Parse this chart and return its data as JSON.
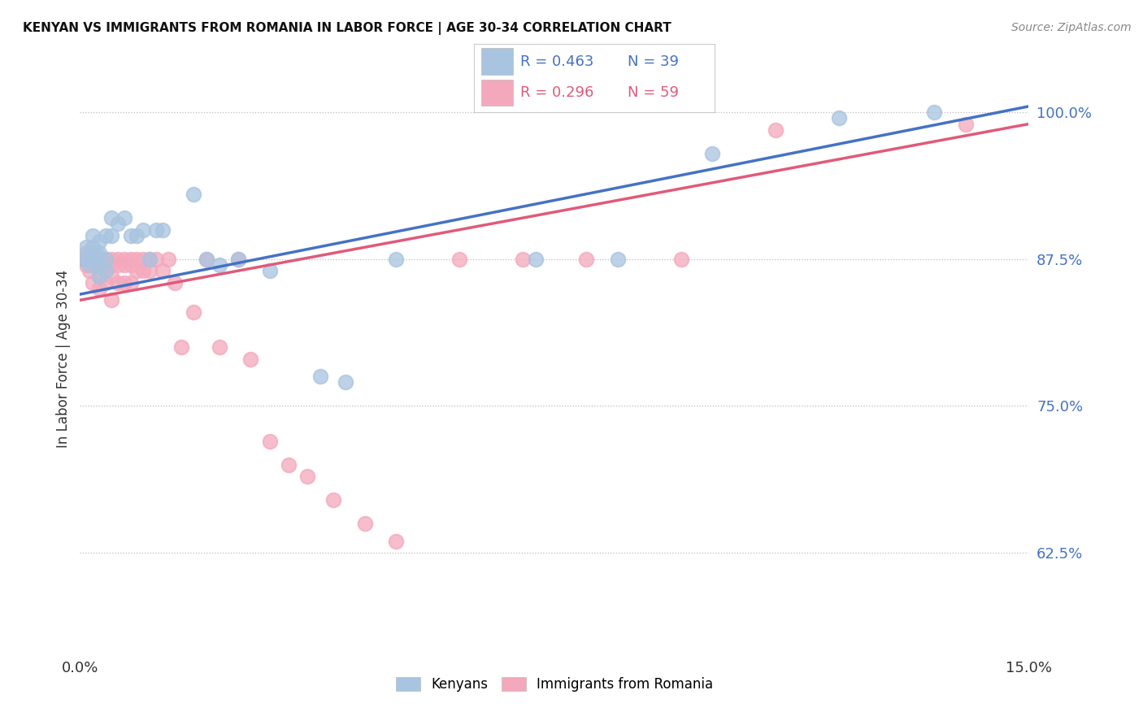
{
  "title": "KENYAN VS IMMIGRANTS FROM ROMANIA IN LABOR FORCE | AGE 30-34 CORRELATION CHART",
  "source": "Source: ZipAtlas.com",
  "ylabel": "In Labor Force | Age 30-34",
  "ytick_labels": [
    "62.5%",
    "75.0%",
    "87.5%",
    "100.0%"
  ],
  "ytick_values": [
    0.625,
    0.75,
    0.875,
    1.0
  ],
  "xmin": 0.0,
  "xmax": 0.15,
  "ymin": 0.54,
  "ymax": 1.04,
  "legend_r1": "R = 0.463",
  "legend_n1": "N = 39",
  "legend_r2": "R = 0.296",
  "legend_n2": "N = 59",
  "color_kenyan": "#a8c4e0",
  "color_romania": "#f4a8bb",
  "color_blue_text": "#4472c4",
  "color_pink_text": "#e05a7a",
  "background_color": "#ffffff",
  "kenyan_x": [
    0.0005,
    0.001,
    0.0012,
    0.0015,
    0.0015,
    0.002,
    0.002,
    0.002,
    0.0025,
    0.003,
    0.003,
    0.003,
    0.003,
    0.004,
    0.004,
    0.004,
    0.005,
    0.005,
    0.006,
    0.007,
    0.008,
    0.009,
    0.01,
    0.011,
    0.012,
    0.013,
    0.018,
    0.02,
    0.022,
    0.025,
    0.03,
    0.038,
    0.042,
    0.05,
    0.072,
    0.085,
    0.1,
    0.12,
    0.135
  ],
  "kenyan_y": [
    0.875,
    0.885,
    0.875,
    0.88,
    0.87,
    0.895,
    0.885,
    0.875,
    0.88,
    0.89,
    0.88,
    0.87,
    0.86,
    0.895,
    0.875,
    0.865,
    0.91,
    0.895,
    0.905,
    0.91,
    0.895,
    0.895,
    0.9,
    0.875,
    0.9,
    0.9,
    0.93,
    0.875,
    0.87,
    0.875,
    0.865,
    0.775,
    0.77,
    0.875,
    0.875,
    0.875,
    0.965,
    0.995,
    1.0
  ],
  "romania_x": [
    0.0003,
    0.0005,
    0.001,
    0.001,
    0.001,
    0.0015,
    0.0015,
    0.002,
    0.002,
    0.002,
    0.0025,
    0.003,
    0.003,
    0.003,
    0.003,
    0.004,
    0.004,
    0.004,
    0.005,
    0.005,
    0.005,
    0.005,
    0.006,
    0.006,
    0.006,
    0.007,
    0.007,
    0.007,
    0.008,
    0.008,
    0.008,
    0.009,
    0.009,
    0.01,
    0.01,
    0.011,
    0.011,
    0.012,
    0.013,
    0.014,
    0.015,
    0.016,
    0.018,
    0.02,
    0.022,
    0.025,
    0.027,
    0.03,
    0.033,
    0.036,
    0.04,
    0.045,
    0.05,
    0.06,
    0.07,
    0.08,
    0.095,
    0.11,
    0.14
  ],
  "romania_y": [
    0.875,
    0.875,
    0.88,
    0.875,
    0.87,
    0.875,
    0.865,
    0.88,
    0.87,
    0.855,
    0.875,
    0.875,
    0.87,
    0.86,
    0.85,
    0.875,
    0.865,
    0.855,
    0.875,
    0.87,
    0.86,
    0.84,
    0.875,
    0.87,
    0.855,
    0.875,
    0.87,
    0.855,
    0.875,
    0.87,
    0.855,
    0.875,
    0.865,
    0.875,
    0.865,
    0.875,
    0.865,
    0.875,
    0.865,
    0.875,
    0.855,
    0.8,
    0.83,
    0.875,
    0.8,
    0.875,
    0.79,
    0.72,
    0.7,
    0.69,
    0.67,
    0.65,
    0.635,
    0.875,
    0.875,
    0.875,
    0.875,
    0.985,
    0.99
  ],
  "blue_line_x": [
    0.0,
    0.15
  ],
  "blue_line_y": [
    0.845,
    1.005
  ],
  "pink_line_x": [
    0.0,
    0.15
  ],
  "pink_line_y": [
    0.84,
    0.99
  ]
}
